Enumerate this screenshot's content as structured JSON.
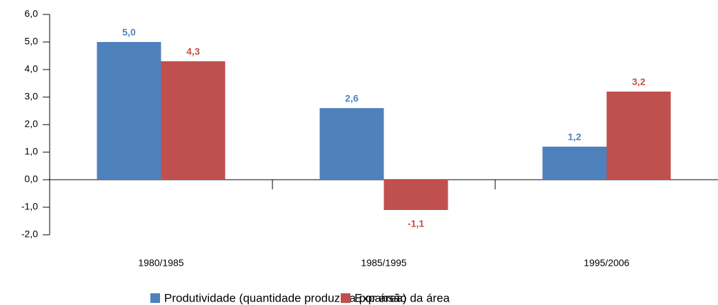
{
  "chart_data": {
    "type": "bar",
    "categories": [
      "1980/1985",
      "1985/1995",
      "1995/2006"
    ],
    "series": [
      {
        "name": "Produtividade (quantidade produzida por área)",
        "color": "#4f81bd",
        "values": [
          5.0,
          2.6,
          1.2
        ],
        "value_labels": [
          "5,0",
          "2,6",
          "1,2"
        ]
      },
      {
        "name": "Expansão da área",
        "color": "#c0504d",
        "values": [
          4.3,
          -1.1,
          3.2
        ],
        "value_labels": [
          "4,3",
          "-1,1",
          "3,2"
        ]
      }
    ],
    "ylim": [
      -2,
      6
    ],
    "yticks": [
      {
        "value": -2,
        "label": "-2,0"
      },
      {
        "value": -1,
        "label": "-1,0"
      },
      {
        "value": 0,
        "label": "0,0"
      },
      {
        "value": 1,
        "label": "1,0"
      },
      {
        "value": 2,
        "label": "2,0"
      },
      {
        "value": 3,
        "label": "3,0"
      },
      {
        "value": 4,
        "label": "4,0"
      },
      {
        "value": 5,
        "label": "5,0"
      },
      {
        "value": 6,
        "label": "6,0"
      }
    ],
    "legend": "bottom"
  }
}
